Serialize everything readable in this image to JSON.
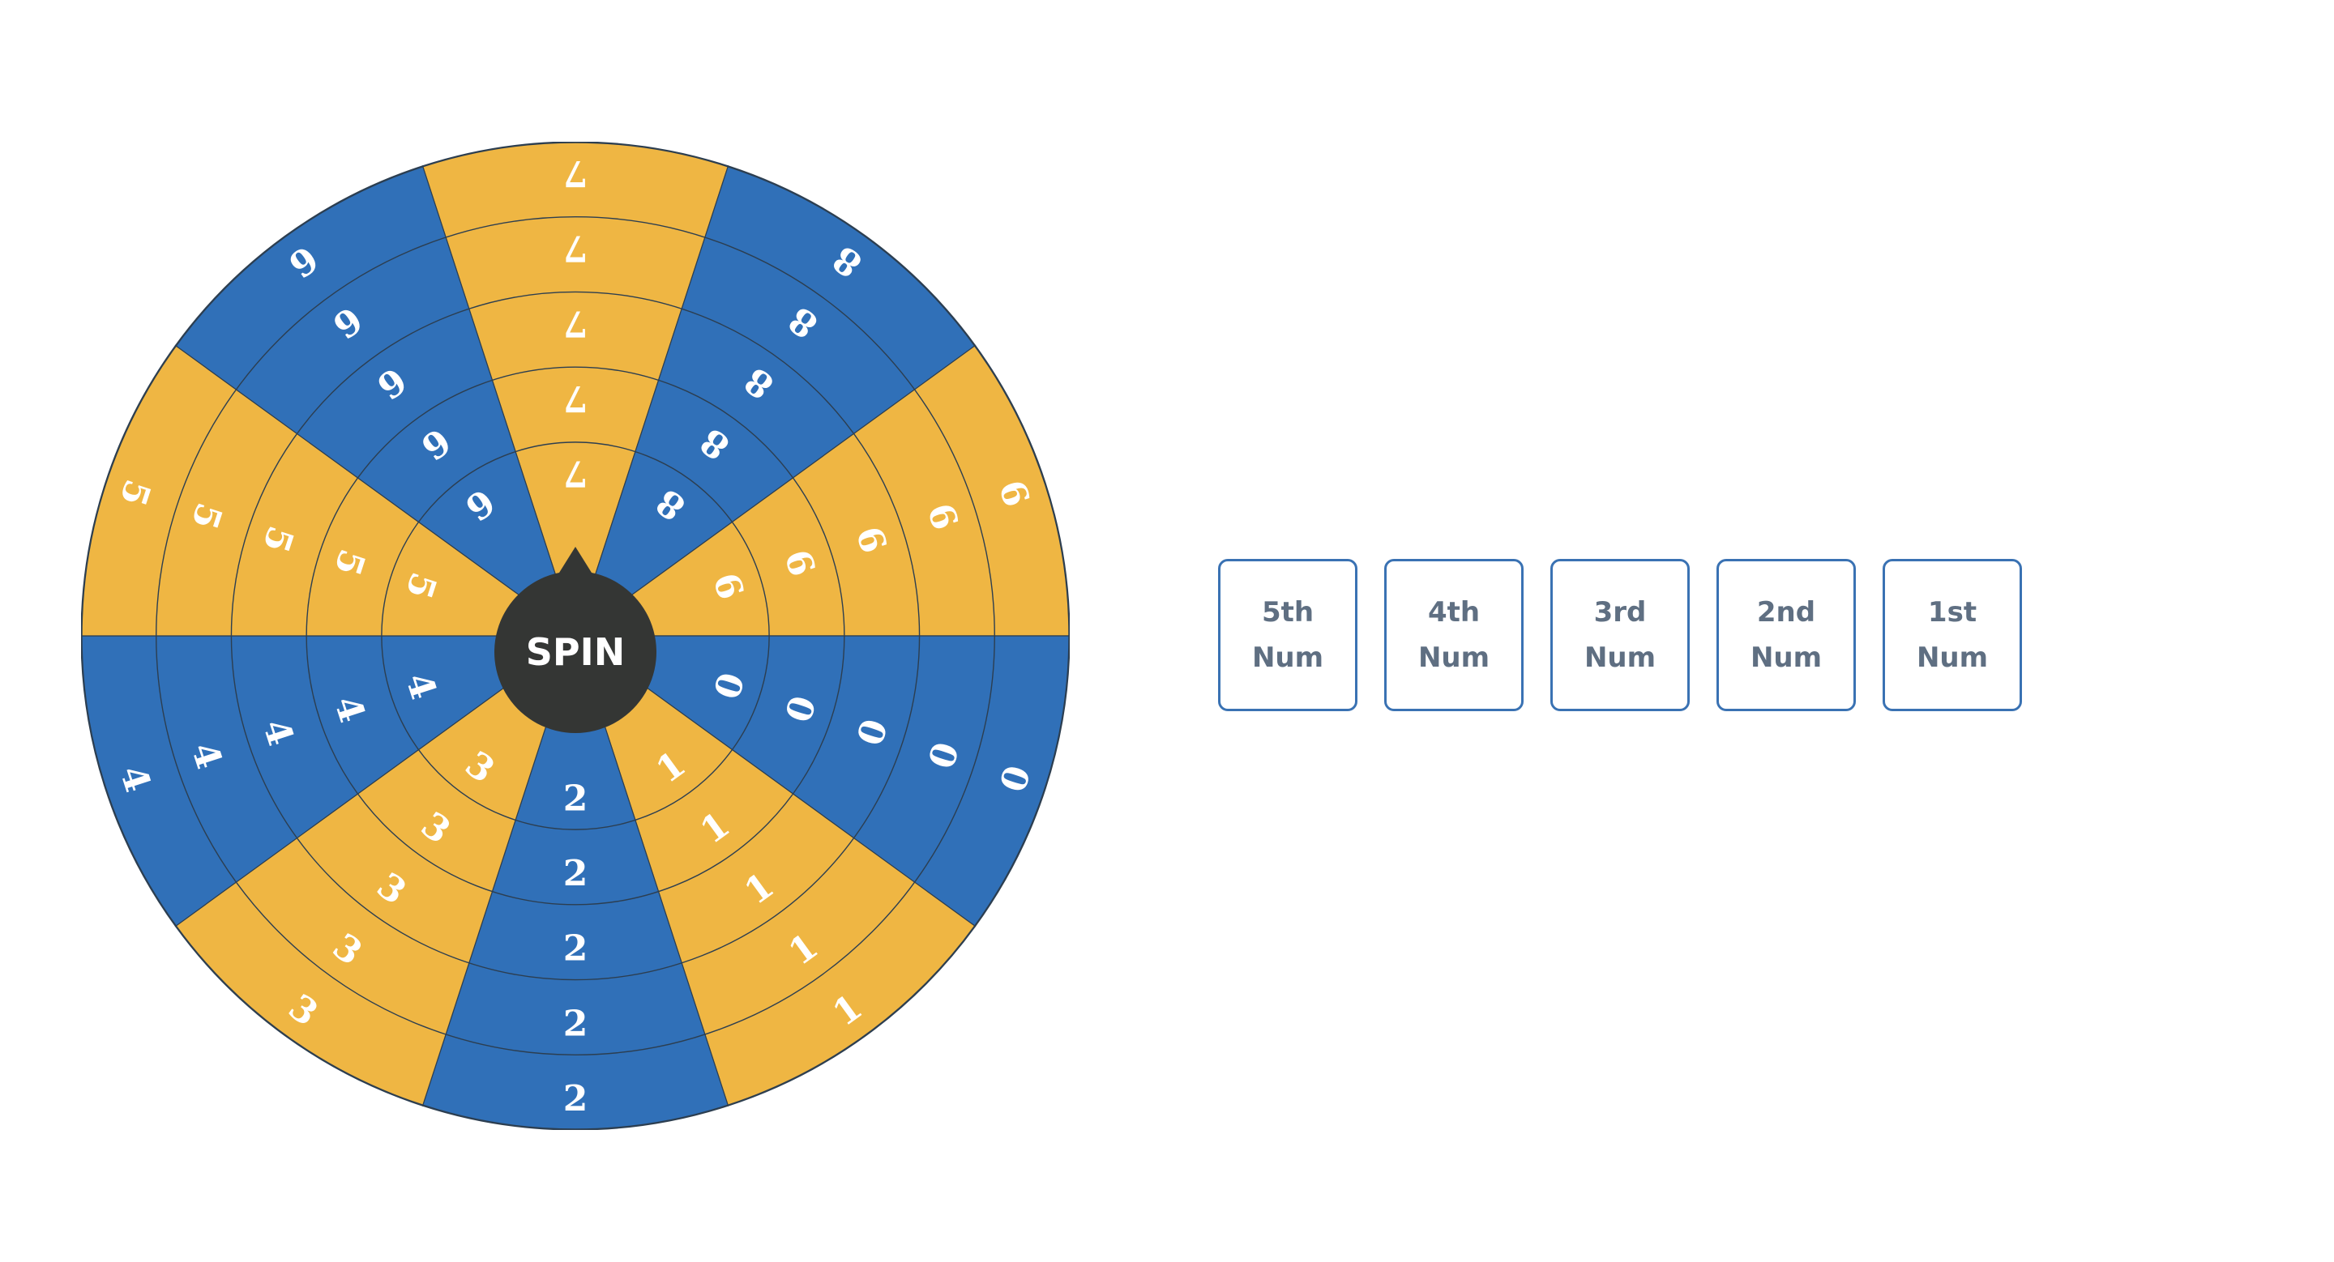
{
  "colors": {
    "blue": "#3070b8",
    "yellow": "#efb643",
    "hub": "#343634",
    "ring_line": "#2c3e50"
  },
  "wheel": {
    "sectors": [
      {
        "digit": "7",
        "color": "yellow"
      },
      {
        "digit": "8",
        "color": "blue"
      },
      {
        "digit": "9",
        "color": "yellow"
      },
      {
        "digit": "0",
        "color": "blue"
      },
      {
        "digit": "1",
        "color": "yellow"
      },
      {
        "digit": "2",
        "color": "blue"
      },
      {
        "digit": "3",
        "color": "yellow"
      },
      {
        "digit": "4",
        "color": "blue"
      },
      {
        "digit": "5",
        "color": "yellow"
      },
      {
        "digit": "6",
        "color": "blue"
      }
    ],
    "rings": 5
  },
  "spin": {
    "label": "SPIN"
  },
  "slots": [
    {
      "line1": "5th",
      "line2": "Num"
    },
    {
      "line1": "4th",
      "line2": "Num"
    },
    {
      "line1": "3rd",
      "line2": "Num"
    },
    {
      "line1": "2nd",
      "line2": "Num"
    },
    {
      "line1": "1st",
      "line2": "Num"
    }
  ]
}
